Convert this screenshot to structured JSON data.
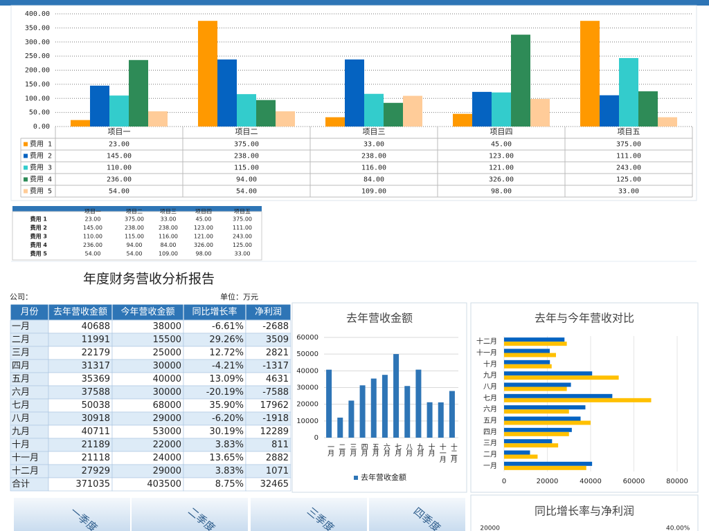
{
  "chart_data": [
    {
      "type": "bar",
      "categories": [
        "项目一",
        "项目二",
        "项目三",
        "项目四",
        "项目五"
      ],
      "series": [
        {
          "name": "费用 1",
          "color": "#ff9900",
          "values": [
            23,
            375,
            33,
            45,
            375
          ],
          "value_labels": [
            "23.00",
            "375.00",
            "33.00",
            "45.00",
            "375.00"
          ]
        },
        {
          "name": "费用 2",
          "color": "#0563c1",
          "values": [
            145,
            238,
            238,
            123,
            111
          ],
          "value_labels": [
            "145.00",
            "238.00",
            "238.00",
            "123.00",
            "111.00"
          ]
        },
        {
          "name": "费用 3",
          "color": "#33cccc",
          "values": [
            110,
            115,
            116,
            121,
            243
          ],
          "value_labels": [
            "110.00",
            "115.00",
            "116.00",
            "121.00",
            "243.00"
          ]
        },
        {
          "name": "费用 4",
          "color": "#2e8b57",
          "values": [
            236,
            94,
            84,
            326,
            125
          ],
          "value_labels": [
            "236.00",
            "94.00",
            "84.00",
            "326.00",
            "125.00"
          ]
        },
        {
          "name": "费用 5",
          "color": "#ffcc99",
          "values": [
            54,
            54,
            109,
            98,
            33
          ],
          "value_labels": [
            "54.00",
            "54.00",
            "109.00",
            "98.00",
            "33.00"
          ]
        }
      ],
      "ylim": [
        0,
        400
      ],
      "yticks": [
        {
          "value": 0,
          "label": "0.00"
        },
        {
          "value": 50,
          "label": "50.00"
        },
        {
          "value": 100,
          "label": "100.00"
        },
        {
          "value": 150,
          "label": "150.00"
        },
        {
          "value": 200,
          "label": "200.00"
        },
        {
          "value": 250,
          "label": "250.00"
        },
        {
          "value": 300,
          "label": "300.00"
        },
        {
          "value": 350,
          "label": "350.00"
        },
        {
          "value": 400,
          "label": "400.00"
        }
      ],
      "grid": true
    },
    {
      "type": "bar",
      "title": "去年营收金额",
      "categories": [
        "一月",
        "二月",
        "三月",
        "四月",
        "五月",
        "六月",
        "七月",
        "八月",
        "九月",
        "十月",
        "十一月",
        "十二月"
      ],
      "series": [
        {
          "name": "去年营收金额",
          "color": "#2e75b6",
          "values": [
            40688,
            11991,
            22179,
            31317,
            35369,
            37588,
            50038,
            30918,
            40711,
            21189,
            21118,
            27929
          ]
        }
      ],
      "ylim": [
        0,
        60000
      ],
      "yticks": [
        0,
        10000,
        20000,
        30000,
        40000,
        50000,
        60000
      ],
      "grid": true
    },
    {
      "type": "barh",
      "title": "去年与今年营收对比",
      "categories": [
        "一月",
        "二月",
        "三月",
        "四月",
        "五月",
        "六月",
        "七月",
        "八月",
        "九月",
        "十月",
        "十一月",
        "十二月"
      ],
      "series": [
        {
          "color": "#0563c1",
          "values": [
            40688,
            11991,
            22179,
            31317,
            35369,
            37588,
            50038,
            30918,
            40711,
            21189,
            21118,
            27929
          ]
        },
        {
          "color": "#ffc000",
          "values": [
            38000,
            15500,
            25000,
            30000,
            40000,
            30000,
            68000,
            29000,
            53000,
            22000,
            24000,
            29000
          ]
        }
      ],
      "xlim": [
        0,
        80000
      ],
      "xticks": [
        0,
        20000,
        40000,
        60000,
        80000
      ],
      "grid": true
    },
    {
      "type": "combo",
      "title": "同比增长率与净利润",
      "yticks": [
        20000
      ],
      "y2ticks": [
        {
          "value": 40,
          "label": "40.00%"
        }
      ]
    }
  ],
  "mini_table": {
    "columns": [
      "项目一",
      "项目二",
      "项目三",
      "项目四",
      "项目五"
    ],
    "rows": [
      [
        "费用 1",
        "23.00",
        "375.00",
        "33.00",
        "45.00",
        "375.00"
      ],
      [
        "费用 2",
        "145.00",
        "238.00",
        "238.00",
        "123.00",
        "111.00"
      ],
      [
        "费用 3",
        "110.00",
        "115.00",
        "116.00",
        "121.00",
        "243.00"
      ],
      [
        "费用 4",
        "236.00",
        "94.00",
        "84.00",
        "326.00",
        "125.00"
      ],
      [
        "费用 5",
        "54.00",
        "54.00",
        "109.00",
        "98.00",
        "33.00"
      ]
    ]
  },
  "report": {
    "title": "年度财务营收分析报告",
    "company": "公司：",
    "unit": "单位：万元",
    "table": {
      "columns": [
        "月份",
        "去年营收金额",
        "今年营收金额",
        "同比增长率",
        "净利润"
      ],
      "rows": [
        [
          "一月",
          "40688",
          "38000",
          "-6.61%",
          "-2688"
        ],
        [
          "二月",
          "11991",
          "15500",
          "29.26%",
          "3509"
        ],
        [
          "三月",
          "22179",
          "25000",
          "12.72%",
          "2821"
        ],
        [
          "四月",
          "31317",
          "30000",
          "-4.21%",
          "-1317"
        ],
        [
          "五月",
          "35369",
          "40000",
          "13.09%",
          "4631"
        ],
        [
          "六月",
          "37588",
          "30000",
          "-20.19%",
          "-7588"
        ],
        [
          "七月",
          "50038",
          "68000",
          "35.90%",
          "17962"
        ],
        [
          "八月",
          "30918",
          "29000",
          "-6.20%",
          "-1918"
        ],
        [
          "九月",
          "40711",
          "53000",
          "30.19%",
          "12289"
        ],
        [
          "十月",
          "21189",
          "22000",
          "3.83%",
          "811"
        ],
        [
          "十一月",
          "21118",
          "24000",
          "13.65%",
          "2882"
        ],
        [
          "十二月",
          "27929",
          "29000",
          "3.83%",
          "1071"
        ],
        [
          "合计",
          "371035",
          "403500",
          "8.75%",
          "32465"
        ]
      ]
    }
  },
  "quarters": [
    "一季度",
    "二季度",
    "三季度",
    "四季度"
  ]
}
